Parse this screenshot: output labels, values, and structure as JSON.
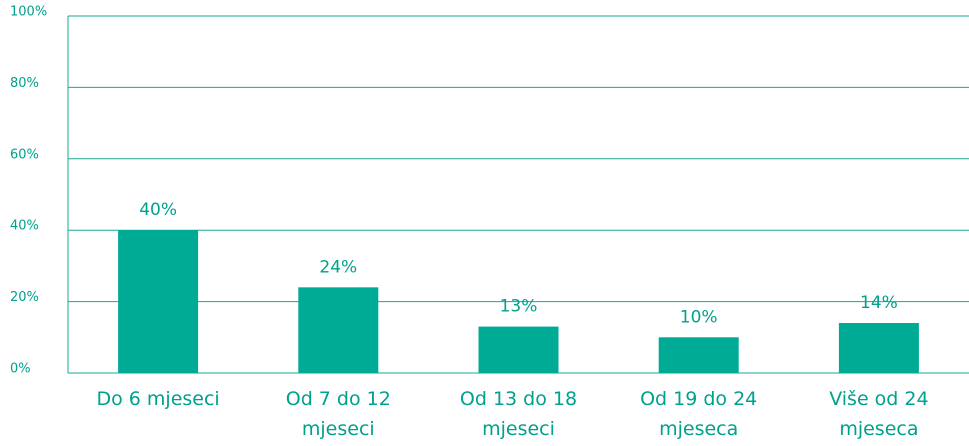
{
  "chart_data": {
    "type": "bar",
    "categories": [
      "Do 6 mjeseci",
      "Od 7 do 12 mjeseci",
      "Od 13 do 18 mjeseci",
      "Od 19 do 24 mjeseca",
      "Više od 24 mjeseca"
    ],
    "values": [
      40,
      24,
      13,
      10,
      14
    ],
    "value_labels": [
      "40%",
      "24%",
      "13%",
      "10%",
      "14%"
    ],
    "color": "#00ab96",
    "ylim": [
      0,
      100
    ],
    "yticks": [
      {
        "value": 0,
        "label": "0%"
      },
      {
        "value": 20,
        "label": "20%"
      },
      {
        "value": 40,
        "label": "40%"
      },
      {
        "value": 60,
        "label": "60%"
      },
      {
        "value": 80,
        "label": "80%"
      },
      {
        "value": 100,
        "label": "100%"
      }
    ],
    "grid": true
  }
}
